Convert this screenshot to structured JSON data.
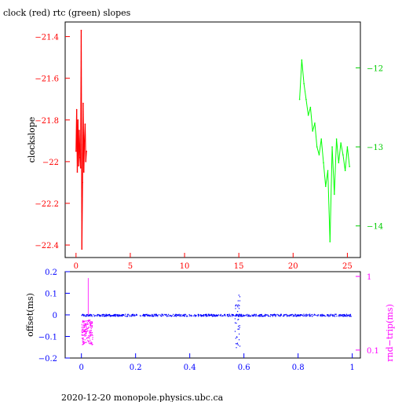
{
  "chart_data": [
    {
      "type": "line",
      "title": "clock (red) rtc (green) slopes",
      "ylabel": "clockslope",
      "xlim": [
        -1,
        26.2
      ],
      "ylim_left": [
        -22.46,
        -21.33
      ],
      "ylim_right": [
        -14.4,
        -11.42
      ],
      "x_ticks": [
        0,
        5,
        10,
        15,
        20,
        25
      ],
      "y_ticks_left": [
        -21.4,
        -21.6,
        -21.8,
        -22,
        -22.2,
        -22.4
      ],
      "y_ticks_right": [
        -12,
        -13,
        -14
      ],
      "series": [
        {
          "color": "#ff0000",
          "axis": "left",
          "x": [
            0.0,
            0.06,
            0.12,
            0.18,
            0.24,
            0.3,
            0.36,
            0.42,
            0.48,
            0.54,
            0.6,
            0.66,
            0.72,
            0.78,
            0.84,
            0.9,
            0.96
          ],
          "y": [
            -21.95,
            -21.75,
            -22.05,
            -21.8,
            -22.02,
            -21.85,
            -21.98,
            -22.03,
            -21.37,
            -22.42,
            -22.1,
            -21.72,
            -22.05,
            -21.9,
            -21.82,
            -22.0,
            -21.95
          ]
        },
        {
          "color": "#00ff00",
          "axis": "right",
          "x": [
            20.6,
            20.8,
            21.0,
            21.2,
            21.4,
            21.6,
            21.8,
            22.0,
            22.2,
            22.4,
            22.6,
            22.8,
            23.0,
            23.2,
            23.4,
            23.6,
            23.8,
            24.0,
            24.2,
            24.4,
            24.6,
            24.8,
            25.0,
            25.2
          ],
          "y": [
            -12.4,
            -11.9,
            -12.2,
            -12.4,
            -12.6,
            -12.5,
            -12.8,
            -12.7,
            -13.0,
            -13.1,
            -12.9,
            -13.2,
            -13.5,
            -13.3,
            -14.2,
            -13.0,
            -13.6,
            -12.9,
            -13.2,
            -12.95,
            -13.1,
            -13.3,
            -13.0,
            -13.25
          ]
        }
      ]
    },
    {
      "type": "scatter",
      "xlim": [
        -0.06,
        1.03
      ],
      "ylim_left": [
        -0.2,
        0.2
      ],
      "ylim_right": [
        0.078,
        1.16
      ],
      "x_ticks": [
        0,
        0.2,
        0.4,
        0.6,
        0.8,
        1
      ],
      "y_ticks_left": [
        0.2,
        0.1,
        0,
        -0.1,
        -0.2
      ],
      "y_ticks_right": [
        1,
        0.1
      ],
      "ylabel_left": "offset(ms)",
      "ylabel_right": "rnd−trip(ms)",
      "series": [
        {
          "color": "#0000ff",
          "axis": "left",
          "x_range": [
            0,
            1
          ],
          "y_center": 0,
          "y_spread": 0.005,
          "spike": {
            "x": 0.575,
            "y_range": [
              -0.15,
              0.1
            ]
          }
        },
        {
          "color": "#ff00ff",
          "axis": "right",
          "x_range": [
            0,
            0.04
          ],
          "y_range": [
            0.12,
            0.26
          ],
          "peak": 0.95
        }
      ]
    }
  ],
  "footer": "2020-12-20  monopole.physics.ubc.ca"
}
